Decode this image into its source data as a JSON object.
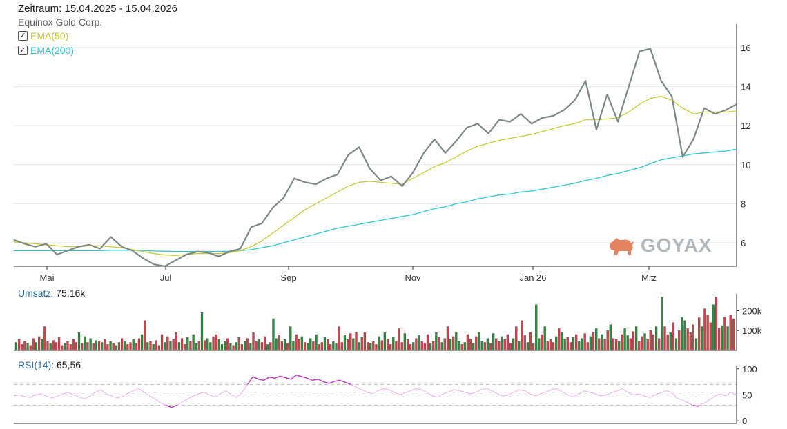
{
  "header": {
    "period_label": "Zeitraum:",
    "period_value": "15.04.2025 - 15.04.2026",
    "instrument": "Equinox Gold Corp."
  },
  "legend": [
    {
      "label": "EMA(50)",
      "color": "#c6c62e",
      "checked": true
    },
    {
      "label": "EMA(200)",
      "color": "#2ec6d6",
      "checked": true
    }
  ],
  "watermark": {
    "text": "GOYAX",
    "color": "#b0b7bd",
    "bull_color": "#e3835f"
  },
  "volume_panel": {
    "label": "Umsatz:",
    "value": "75,16k"
  },
  "rsi_panel": {
    "label": "RSI(14):",
    "value": "65,56"
  },
  "colors": {
    "price": "#7a8a80",
    "ema50": "#c6c62e",
    "ema200": "#2ec6d6",
    "vol_up": "#2e8b3e",
    "vol_down": "#d2404a",
    "rsi": "#c030c0",
    "grid": "#e6e6e6",
    "axis": "#333333"
  },
  "chart_data": [
    {
      "type": "line",
      "title": "",
      "x_ticks": [
        "Mai",
        "Jul",
        "Sep",
        "Nov",
        "Jan 26",
        "Mrz"
      ],
      "y_ticks": [
        6,
        8,
        10,
        12,
        14,
        16
      ],
      "ylim": [
        4.8,
        17.2
      ],
      "series": [
        {
          "name": "Equinox Gold Corp.",
          "values": [
            6.15,
            5.95,
            5.8,
            5.95,
            5.4,
            5.6,
            5.8,
            5.9,
            5.7,
            6.3,
            5.8,
            5.6,
            5.2,
            4.9,
            4.8,
            5.1,
            5.4,
            5.55,
            5.5,
            5.3,
            5.55,
            5.7,
            6.8,
            7.0,
            7.8,
            8.3,
            9.3,
            9.1,
            9.0,
            9.3,
            9.5,
            10.5,
            10.9,
            9.8,
            9.2,
            9.4,
            8.9,
            9.6,
            10.6,
            11.3,
            10.6,
            11.2,
            11.9,
            12.1,
            11.6,
            12.3,
            12.2,
            12.6,
            12.1,
            12.4,
            12.5,
            12.8,
            13.3,
            14.3,
            11.8,
            13.6,
            12.2,
            14.0,
            15.8,
            15.95,
            14.3,
            13.5,
            10.4,
            11.3,
            12.9,
            12.6,
            12.8,
            13.1
          ]
        },
        {
          "name": "EMA(50)",
          "values": [
            6.05,
            6.0,
            5.95,
            5.9,
            5.85,
            5.8,
            5.8,
            5.85,
            5.85,
            5.8,
            5.75,
            5.65,
            5.55,
            5.45,
            5.38,
            5.35,
            5.4,
            5.45,
            5.45,
            5.45,
            5.5,
            5.6,
            5.8,
            6.1,
            6.5,
            6.9,
            7.3,
            7.7,
            8.0,
            8.3,
            8.6,
            8.9,
            9.1,
            9.15,
            9.1,
            9.05,
            9.0,
            9.3,
            9.6,
            9.9,
            10.1,
            10.4,
            10.7,
            10.95,
            11.1,
            11.25,
            11.35,
            11.45,
            11.55,
            11.7,
            11.85,
            12.0,
            12.1,
            12.3,
            12.3,
            12.35,
            12.4,
            12.7,
            13.1,
            13.4,
            13.5,
            13.3,
            12.9,
            12.6,
            12.7,
            12.7,
            12.7,
            12.75
          ]
        },
        {
          "name": "EMA(200)",
          "values": [
            5.6,
            5.6,
            5.6,
            5.6,
            5.6,
            5.6,
            5.6,
            5.6,
            5.6,
            5.62,
            5.62,
            5.62,
            5.6,
            5.58,
            5.57,
            5.56,
            5.56,
            5.56,
            5.56,
            5.56,
            5.57,
            5.6,
            5.65,
            5.75,
            5.85,
            6.0,
            6.15,
            6.3,
            6.45,
            6.6,
            6.75,
            6.85,
            6.95,
            7.05,
            7.15,
            7.25,
            7.35,
            7.45,
            7.6,
            7.75,
            7.85,
            8.0,
            8.1,
            8.25,
            8.35,
            8.45,
            8.5,
            8.6,
            8.65,
            8.75,
            8.85,
            8.95,
            9.05,
            9.2,
            9.3,
            9.45,
            9.55,
            9.7,
            9.85,
            10.05,
            10.25,
            10.35,
            10.45,
            10.55,
            10.6,
            10.65,
            10.7,
            10.8
          ]
        }
      ]
    },
    {
      "type": "bar",
      "title": "Umsatz",
      "y_ticks": [
        "100k",
        "200k"
      ],
      "y_tick_values": [
        100,
        200
      ],
      "ylim": [
        0,
        285
      ],
      "values": [
        40,
        55,
        30,
        45,
        35,
        25,
        60,
        40,
        70,
        55,
        120,
        45,
        35,
        50,
        40,
        65,
        25,
        35,
        45,
        30,
        55,
        40,
        90,
        35,
        70,
        40,
        60,
        35,
        50,
        45,
        40,
        55,
        30,
        45,
        35,
        25,
        40,
        60,
        45,
        30,
        40,
        55,
        35,
        60,
        80,
        150,
        40,
        45,
        30,
        50,
        25,
        80,
        40,
        70,
        45,
        55,
        90,
        40,
        60,
        30,
        65,
        45,
        80,
        35,
        45,
        190,
        50,
        60,
        40,
        70,
        80,
        55,
        30,
        45,
        60,
        35,
        25,
        40,
        65,
        30,
        45,
        60,
        35,
        90,
        45,
        55,
        40,
        70,
        30,
        40,
        160,
        60,
        75,
        45,
        55,
        35,
        120,
        45,
        80,
        55,
        70,
        40,
        35,
        60,
        45,
        80,
        30,
        40,
        65,
        55,
        30,
        45,
        35,
        120,
        40,
        75,
        55,
        85,
        60,
        90,
        40,
        65,
        90,
        40,
        35,
        45,
        30,
        70,
        50,
        90,
        55,
        30,
        65,
        45,
        110,
        40,
        85,
        55,
        30,
        40,
        60,
        75,
        45,
        35,
        80,
        35,
        45,
        90,
        65,
        40,
        60,
        120,
        55,
        70,
        90,
        45,
        30,
        40,
        80,
        55,
        35,
        70,
        90,
        45,
        40,
        60,
        35,
        85,
        60,
        45,
        70,
        55,
        80,
        35,
        60,
        120,
        45,
        150,
        75,
        40,
        90,
        35,
        230,
        60,
        80,
        120,
        45,
        55,
        40,
        70,
        110,
        90,
        55,
        65,
        40,
        65,
        80,
        45,
        60,
        85,
        40,
        70,
        90,
        110,
        60,
        80,
        55,
        100,
        130,
        60,
        55,
        45,
        80,
        110,
        75,
        60,
        95,
        120,
        45,
        70,
        85,
        55,
        100,
        80,
        120,
        60,
        270,
        120,
        80,
        90,
        140,
        60,
        100,
        170,
        150,
        110,
        90,
        130,
        60,
        165,
        120,
        210,
        180,
        140,
        230,
        270,
        110,
        125,
        170,
        120,
        180,
        160
      ],
      "directions": "uddduddududdudddduddddudududududdududdudduddudududddududdudduduududuudduuudududdududdudduduudduduudduduududdudduudduddududdduddududduddduddududddudududduduududduduudududdudddududdudduududdduduudduduuddudududdudduduudduddudddududdududuudddud"
    },
    {
      "type": "line",
      "title": "RSI(14)",
      "y_ticks": [
        0,
        50,
        100
      ],
      "ylim": [
        -5,
        105
      ],
      "series": [
        {
          "name": "RSI(14)",
          "values": [
            48,
            50,
            47,
            45,
            50,
            52,
            48,
            44,
            47,
            52,
            55,
            50,
            46,
            42,
            48,
            55,
            60,
            52,
            48,
            44,
            47,
            53,
            58,
            62,
            55,
            48,
            42,
            35,
            30,
            26,
            30,
            36,
            42,
            48,
            52,
            55,
            50,
            46,
            52,
            58,
            50,
            45,
            55,
            70,
            85,
            80,
            78,
            84,
            82,
            86,
            83,
            80,
            88,
            85,
            82,
            78,
            80,
            75,
            72,
            76,
            78,
            74,
            70,
            65,
            60,
            55,
            52,
            58,
            62,
            60,
            55,
            50,
            54,
            58,
            62,
            60,
            55,
            48,
            46,
            52,
            56,
            60,
            58,
            55,
            52,
            55,
            60,
            62,
            58,
            52,
            48,
            50,
            55,
            60,
            58,
            52,
            48,
            52,
            56,
            60,
            62,
            55,
            50,
            46,
            52,
            58,
            55,
            52,
            48,
            50,
            54,
            58,
            62,
            55,
            50,
            52,
            48,
            45,
            50,
            54,
            58,
            55,
            44,
            40,
            35,
            30,
            28,
            34,
            40,
            48,
            52,
            48,
            55,
            50
          ]
        }
      ]
    }
  ]
}
